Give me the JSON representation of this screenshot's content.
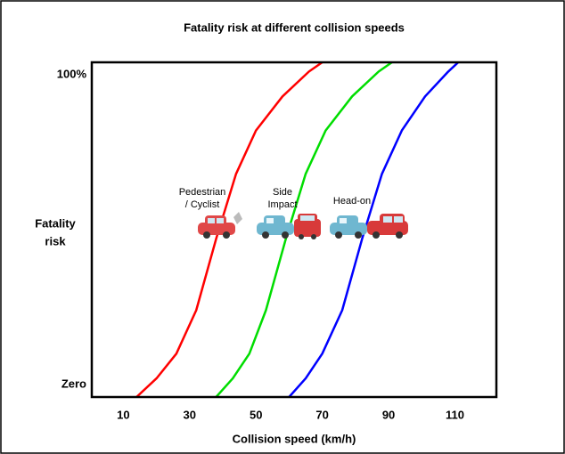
{
  "chart_data": {
    "type": "line",
    "title": "Fatality risk at different collision speeds",
    "x_label": "Collision speed (km/h)",
    "y_label_lines": [
      "Fatality",
      "risk"
    ],
    "xlim": [
      0.5,
      122.5
    ],
    "xticks": [
      10,
      30,
      50,
      70,
      90,
      110
    ],
    "ylim": [
      -4,
      104
    ],
    "yticks": [
      {
        "value": 0,
        "label": "Zero"
      },
      {
        "value": 100,
        "label": "100%"
      }
    ],
    "series": [
      {
        "color": "#ff0000",
        "x": [
          14,
          20,
          26,
          32,
          38,
          44,
          50,
          58,
          66,
          70
        ],
        "values": [
          -4,
          2,
          10,
          24,
          47,
          68,
          82,
          93,
          101,
          104
        ]
      },
      {
        "color": "#00dd00",
        "x": [
          38,
          43,
          48,
          53,
          59,
          65,
          71,
          79,
          87,
          91
        ],
        "values": [
          -4,
          2,
          10,
          24,
          47,
          68,
          82,
          93,
          101,
          104
        ]
      },
      {
        "color": "#0000ff",
        "x": [
          60,
          65,
          70,
          76,
          82,
          88,
          94,
          101,
          108,
          111
        ],
        "values": [
          -4,
          2,
          10,
          24,
          47,
          68,
          82,
          93,
          101,
          104
        ]
      }
    ],
    "annotations": [
      {
        "lines": [
          "Pedestrian",
          "/ Cyclist"
        ]
      },
      {
        "lines": [
          "Side",
          "Impact"
        ]
      },
      {
        "lines": [
          "Head-on"
        ]
      }
    ]
  }
}
